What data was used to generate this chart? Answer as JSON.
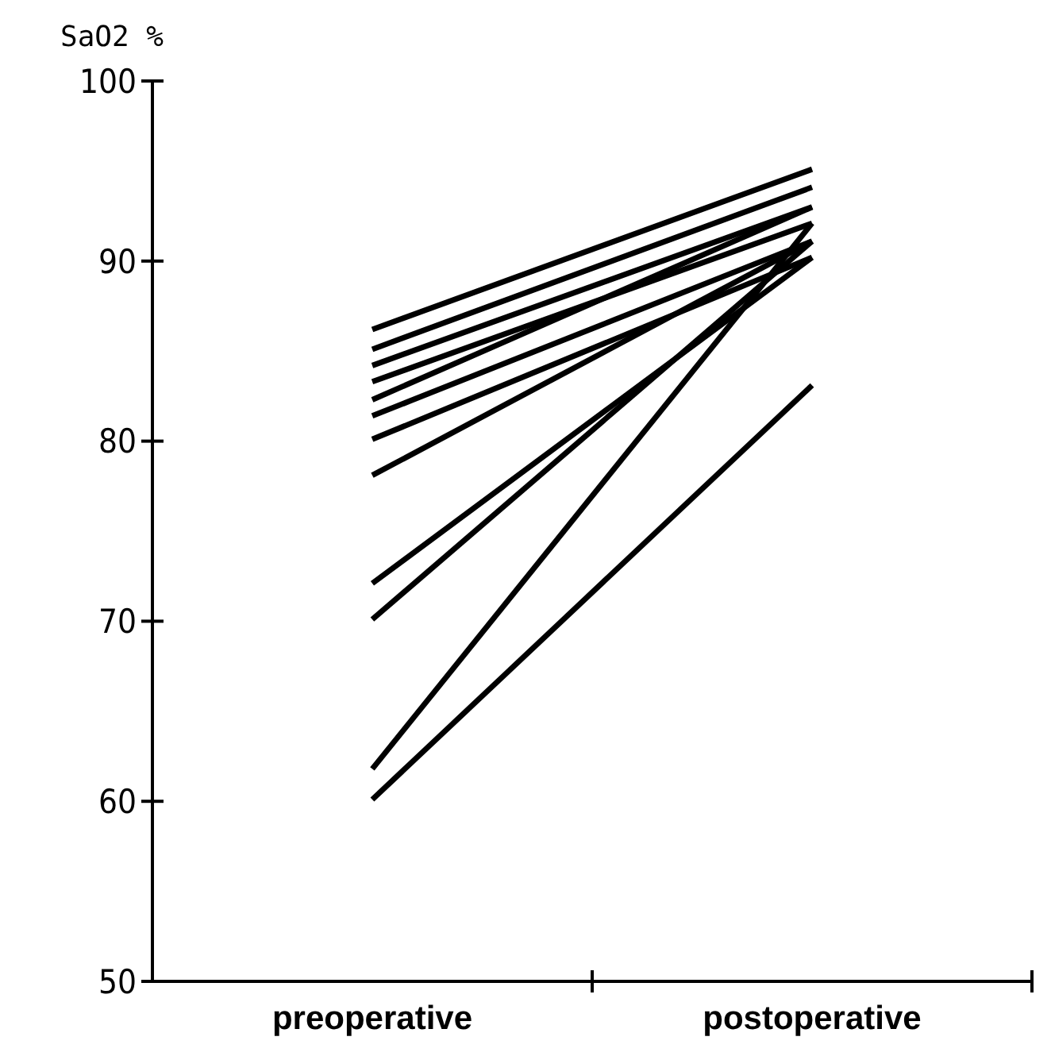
{
  "chart_data": {
    "type": "line",
    "ylabel": "SaO2 %",
    "categories": [
      "preoperative",
      "postoperative"
    ],
    "ylim": [
      50,
      100
    ],
    "yticks": [
      50,
      60,
      70,
      80,
      90,
      100
    ],
    "marker": "none",
    "line_style": "solid",
    "series": [
      {
        "color": "#000000",
        "values": [
          86.2,
          95.1
        ]
      },
      {
        "color": "#000000",
        "values": [
          85.1,
          94.1
        ]
      },
      {
        "color": "#000000",
        "values": [
          84.2,
          93.0
        ]
      },
      {
        "color": "#000000",
        "values": [
          83.3,
          92.1
        ]
      },
      {
        "color": "#000000",
        "values": [
          82.3,
          93.0
        ]
      },
      {
        "color": "#000000",
        "values": [
          81.4,
          91.1
        ]
      },
      {
        "color": "#000000",
        "values": [
          80.1,
          90.2
        ]
      },
      {
        "color": "#000000",
        "values": [
          78.1,
          91.1
        ]
      },
      {
        "color": "#000000",
        "values": [
          72.1,
          90.2
        ]
      },
      {
        "color": "#000000",
        "values": [
          70.1,
          91.1
        ]
      },
      {
        "color": "#000000",
        "values": [
          61.8,
          92.1
        ]
      },
      {
        "color": "#000000",
        "values": [
          60.1,
          83.1
        ]
      }
    ]
  }
}
